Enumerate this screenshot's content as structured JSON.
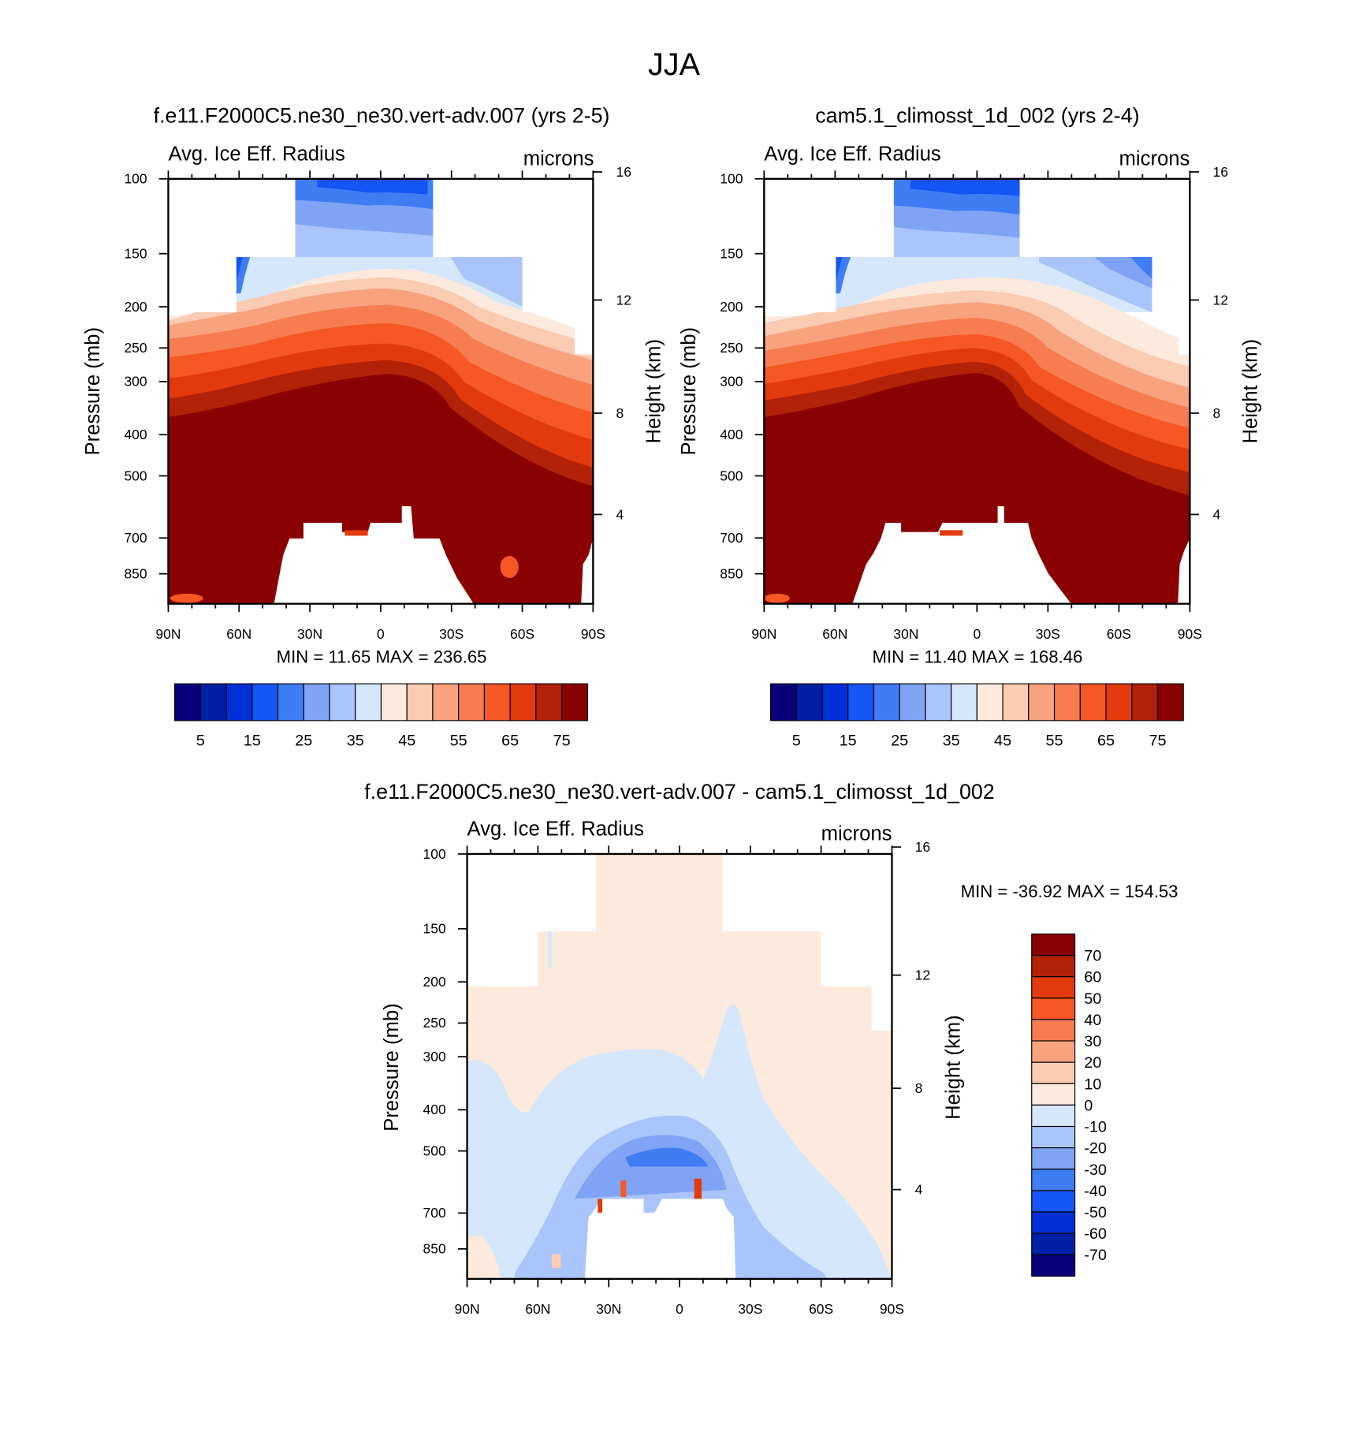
{
  "figure_title": "JJA",
  "chart_data": [
    {
      "id": "panel_a",
      "type": "contour",
      "title": "f.e11.F2000C5.ne30_ne30.vert-adv.007 (yrs 2-5)",
      "field_label": "Avg. Ice Eff. Radius",
      "units": "microns",
      "xlabel": "",
      "ylabel": "Pressure (mb)",
      "ylabel_right": "Height (km)",
      "x_ticks": [
        "90N",
        "60N",
        "30N",
        "0",
        "30S",
        "60S",
        "90S"
      ],
      "x_values": [
        90,
        60,
        30,
        0,
        -30,
        -60,
        -90
      ],
      "p_ticks": [
        "100",
        "150",
        "200",
        "250",
        "300",
        "400",
        "500",
        "700",
        "850"
      ],
      "p_values": [
        100,
        150,
        200,
        250,
        300,
        400,
        500,
        700,
        850
      ],
      "z_ticks": [
        "16",
        "12",
        "8",
        "4"
      ],
      "z_values": [
        16,
        12,
        8,
        4
      ],
      "stat_text": "MIN =  11.65  MAX = 236.65",
      "min": 11.65,
      "max": 236.65,
      "colorbar_labels": [
        "5",
        "15",
        "25",
        "35",
        "45",
        "55",
        "65",
        "75"
      ],
      "colorbar_levels": [
        5,
        10,
        15,
        20,
        25,
        30,
        35,
        40,
        45,
        50,
        55,
        60,
        65,
        70,
        75
      ]
    },
    {
      "id": "panel_b",
      "type": "contour",
      "title": "cam5.1_climosst_1d_002 (yrs 2-4)",
      "field_label": "Avg. Ice Eff. Radius",
      "units": "microns",
      "xlabel": "",
      "ylabel": "Pressure (mb)",
      "ylabel_right": "Height (km)",
      "x_ticks": [
        "90N",
        "60N",
        "30N",
        "0",
        "30S",
        "60S",
        "90S"
      ],
      "x_values": [
        90,
        60,
        30,
        0,
        -30,
        -60,
        -90
      ],
      "p_ticks": [
        "100",
        "150",
        "200",
        "250",
        "300",
        "400",
        "500",
        "700",
        "850"
      ],
      "p_values": [
        100,
        150,
        200,
        250,
        300,
        400,
        500,
        700,
        850
      ],
      "z_ticks": [
        "16",
        "12",
        "8",
        "4"
      ],
      "z_values": [
        16,
        12,
        8,
        4
      ],
      "stat_text": "MIN =  11.40  MAX = 168.46",
      "min": 11.4,
      "max": 168.46,
      "colorbar_labels": [
        "5",
        "15",
        "25",
        "35",
        "45",
        "55",
        "65",
        "75"
      ],
      "colorbar_levels": [
        5,
        10,
        15,
        20,
        25,
        30,
        35,
        40,
        45,
        50,
        55,
        60,
        65,
        70,
        75
      ]
    },
    {
      "id": "panel_diff",
      "type": "contour",
      "title": "f.e11.F2000C5.ne30_ne30.vert-adv.007 - cam5.1_climosst_1d_002",
      "field_label": "Avg. Ice Eff. Radius",
      "units": "microns",
      "xlabel": "",
      "ylabel": "Pressure (mb)",
      "ylabel_right": "Height (km)",
      "x_ticks": [
        "90N",
        "60N",
        "30N",
        "0",
        "30S",
        "60S",
        "90S"
      ],
      "x_values": [
        90,
        60,
        30,
        0,
        -30,
        -60,
        -90
      ],
      "p_ticks": [
        "100",
        "150",
        "200",
        "250",
        "300",
        "400",
        "500",
        "700",
        "850"
      ],
      "p_values": [
        100,
        150,
        200,
        250,
        300,
        400,
        500,
        700,
        850
      ],
      "z_ticks": [
        "16",
        "12",
        "8",
        "4"
      ],
      "z_values": [
        16,
        12,
        8,
        4
      ],
      "stat_text": "MIN = -36.92  MAX = 154.53",
      "min": -36.92,
      "max": 154.53,
      "colorbar_labels": [
        "70",
        "60",
        "50",
        "40",
        "30",
        "20",
        "10",
        "0",
        "-10",
        "-20",
        "-30",
        "-40",
        "-50",
        "-60",
        "-70"
      ],
      "colorbar_levels": [
        70,
        60,
        50,
        40,
        30,
        20,
        10,
        0,
        -10,
        -20,
        -30,
        -40,
        -50,
        -60,
        -70
      ]
    }
  ],
  "colors": {
    "seq16": [
      "#08007a",
      "#0020a8",
      "#0030d8",
      "#1455f5",
      "#3f7df5",
      "#7fa3f5",
      "#aac5fb",
      "#d5e7fc",
      "#fdeadd",
      "#fbcbb2",
      "#f9a37e",
      "#f77d50",
      "#f65724",
      "#e23a0d",
      "#b32107",
      "#8a0102"
    ],
    "diff15": [
      "#8a0102",
      "#b32107",
      "#e23a0d",
      "#f65724",
      "#f77d50",
      "#f9a37e",
      "#fbcbb2",
      "#fdeadd",
      "#d5e7fc",
      "#aac5fb",
      "#7fa3f5",
      "#3f7df5",
      "#1455f5",
      "#0030d8",
      "#0020a8",
      "#08007a"
    ]
  }
}
